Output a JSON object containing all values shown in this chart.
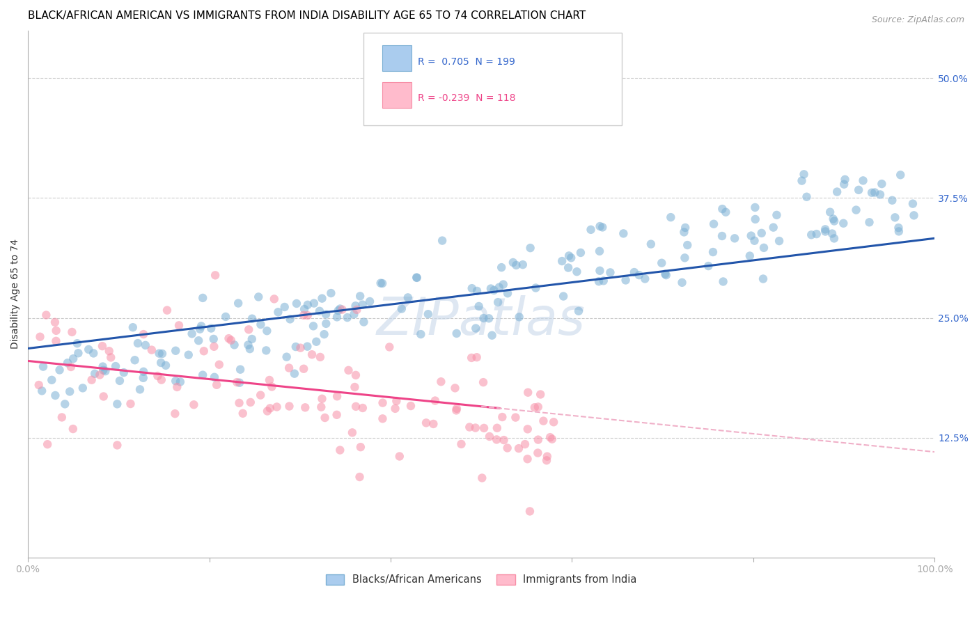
{
  "title": "BLACK/AFRICAN AMERICAN VS IMMIGRANTS FROM INDIA DISABILITY AGE 65 TO 74 CORRELATION CHART",
  "source": "Source: ZipAtlas.com",
  "ylabel": "Disability Age 65 to 74",
  "blue_R": 0.705,
  "blue_N": 199,
  "pink_R": -0.239,
  "pink_N": 118,
  "blue_color": "#7BAFD4",
  "pink_color": "#F78FA7",
  "blue_line_color": "#2255AA",
  "pink_line_color": "#EE4488",
  "pink_dash_color": "#F0B0C8",
  "watermark": "ZIPatlas",
  "xlim": [
    0.0,
    1.0
  ],
  "ylim": [
    0.0,
    0.55
  ],
  "xticks": [
    0.0,
    0.2,
    0.4,
    0.6,
    0.8,
    1.0
  ],
  "ytick_positions": [
    0.125,
    0.25,
    0.375,
    0.5
  ],
  "ytick_labels": [
    "12.5%",
    "25.0%",
    "37.5%",
    "50.0%"
  ],
  "blue_intercept": 0.218,
  "blue_slope": 0.115,
  "pink_intercept": 0.205,
  "pink_slope": -0.095,
  "title_fontsize": 11,
  "label_fontsize": 10,
  "tick_fontsize": 10,
  "legend_label_blue": "Blacks/African Americans",
  "legend_label_pink": "Immigrants from India"
}
